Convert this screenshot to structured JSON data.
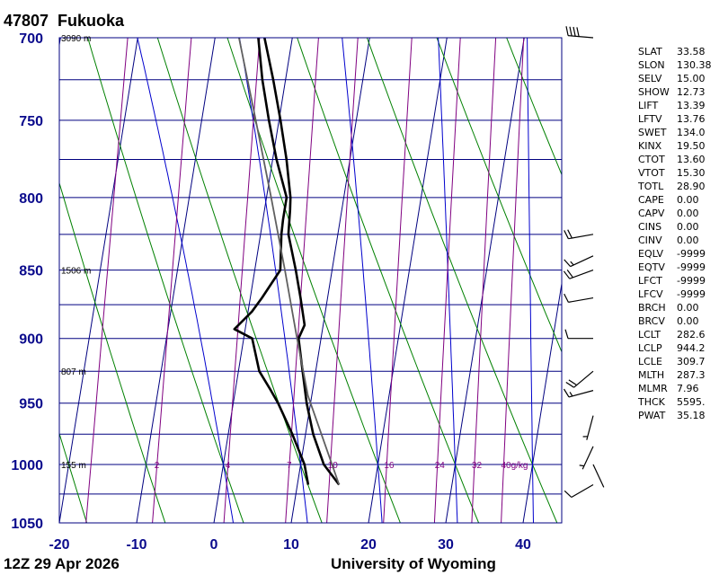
{
  "header": {
    "station_id": "47807",
    "station_name": "Fukuoka",
    "time": "12Z 29 Apr 2026",
    "credit": "University of Wyoming"
  },
  "chart_data": {
    "type": "line",
    "title": "47807  Fukuoka",
    "xlim": [
      -20,
      45
    ],
    "ylim": [
      1050,
      700
    ],
    "y_scale": "log",
    "x_ticks": [
      -20,
      -10,
      0,
      10,
      20,
      30,
      40
    ],
    "y_ticks": [
      700,
      750,
      800,
      850,
      900,
      950,
      1000,
      1050
    ],
    "grid": true,
    "height_labels": [
      {
        "p": 700,
        "text": "3090 m"
      },
      {
        "p": 850,
        "text": "1506 m"
      },
      {
        "p": 925,
        "text": "807 m"
      },
      {
        "p": 1000,
        "text": "155 m"
      }
    ],
    "mixing_ratio_labels": [
      "2",
      "4",
      "7",
      "10",
      "16",
      "24",
      "32",
      "40g/kg"
    ],
    "mixing_ratios": [
      1,
      2,
      4,
      7,
      10,
      16,
      24,
      32,
      40
    ],
    "dry_adiabats_theta": [
      -30,
      -20,
      -10,
      0,
      10,
      20,
      30,
      40,
      50,
      60,
      70
    ],
    "moist_adiabats_theta": [
      0,
      10,
      20,
      30,
      40
    ],
    "isotherms_skew": [
      -90,
      -80,
      -70,
      -60,
      -50,
      -40,
      -30,
      -20,
      -10,
      0,
      10,
      20,
      30,
      40
    ],
    "series": [
      {
        "key": "temperature",
        "values": [
          {
            "p": 1017,
            "t": 15.4
          },
          {
            "p": 1000,
            "t": 13.0
          },
          {
            "p": 975,
            "t": 11.0
          },
          {
            "p": 950,
            "t": 9.5
          },
          {
            "p": 925,
            "t": 8.3
          },
          {
            "p": 900,
            "t": 7.1
          },
          {
            "p": 890,
            "t": 7.6
          },
          {
            "p": 870,
            "t": 6.5
          },
          {
            "p": 850,
            "t": 5.3
          },
          {
            "p": 825,
            "t": 3.6
          },
          {
            "p": 808,
            "t": 3.3
          },
          {
            "p": 800,
            "t": 3.1
          },
          {
            "p": 775,
            "t": 1.8
          },
          {
            "p": 750,
            "t": 0.2
          },
          {
            "p": 725,
            "t": -1.6
          },
          {
            "p": 700,
            "t": -3.6
          }
        ]
      },
      {
        "key": "dewpoint",
        "values": [
          {
            "p": 1017,
            "t": 11.4
          },
          {
            "p": 1000,
            "t": 10.5
          },
          {
            "p": 975,
            "t": 8.3
          },
          {
            "p": 950,
            "t": 5.8
          },
          {
            "p": 940,
            "t": 4.6
          },
          {
            "p": 925,
            "t": 2.7
          },
          {
            "p": 900,
            "t": 1.1
          },
          {
            "p": 893,
            "t": -1.4
          },
          {
            "p": 880,
            "t": 0.5
          },
          {
            "p": 870,
            "t": 1.5
          },
          {
            "p": 850,
            "t": 3.3
          },
          {
            "p": 825,
            "t": 2.7
          },
          {
            "p": 815,
            "t": 2.6
          },
          {
            "p": 800,
            "t": 2.6
          },
          {
            "p": 775,
            "t": 0.5
          },
          {
            "p": 750,
            "t": -1.3
          },
          {
            "p": 725,
            "t": -3.0
          },
          {
            "p": 700,
            "t": -4.4
          }
        ]
      },
      {
        "key": "parcel",
        "values": [
          {
            "p": 1017,
            "t": 15.4
          },
          {
            "p": 944,
            "t": 9.5
          },
          {
            "p": 900,
            "t": 6.9
          },
          {
            "p": 850,
            "t": 3.9
          },
          {
            "p": 800,
            "t": 0.6
          },
          {
            "p": 750,
            "t": -3.0
          },
          {
            "p": 700,
            "t": -6.9
          }
        ]
      }
    ],
    "wind_barbs": [
      {
        "p": 700,
        "dir": 275,
        "spd": 40
      },
      {
        "p": 825,
        "dir": 260,
        "spd": 20
      },
      {
        "p": 840,
        "dir": 245,
        "spd": 15
      },
      {
        "p": 850,
        "dir": 250,
        "spd": 20
      },
      {
        "p": 870,
        "dir": 260,
        "spd": 10
      },
      {
        "p": 900,
        "dir": 270,
        "spd": 10
      },
      {
        "p": 925,
        "dir": 230,
        "spd": 20
      },
      {
        "p": 940,
        "dir": 255,
        "spd": 15
      },
      {
        "p": 960,
        "dir": 195,
        "spd": 5
      },
      {
        "p": 985,
        "dir": 205,
        "spd": 5
      },
      {
        "p": 1000,
        "dir": 155,
        "spd": 0
      },
      {
        "p": 1017,
        "dir": 240,
        "spd": 10
      }
    ]
  },
  "indices": [
    {
      "name": "SLAT",
      "value": "33.58"
    },
    {
      "name": "SLON",
      "value": "130.38"
    },
    {
      "name": "SELV",
      "value": "15.00"
    },
    {
      "name": "SHOW",
      "value": "12.73"
    },
    {
      "name": "LIFT",
      "value": "13.39"
    },
    {
      "name": "LFTV",
      "value": "13.76"
    },
    {
      "name": "SWET",
      "value": "134.0"
    },
    {
      "name": "KINX",
      "value": "19.50"
    },
    {
      "name": "CTOT",
      "value": "13.60"
    },
    {
      "name": "VTOT",
      "value": "15.30"
    },
    {
      "name": "TOTL",
      "value": "28.90"
    },
    {
      "name": "CAPE",
      "value": "0.00"
    },
    {
      "name": "CAPV",
      "value": "0.00"
    },
    {
      "name": "CINS",
      "value": "0.00"
    },
    {
      "name": "CINV",
      "value": "0.00"
    },
    {
      "name": "EQLV",
      "value": "-9999"
    },
    {
      "name": "EQTV",
      "value": "-9999"
    },
    {
      "name": "LFCT",
      "value": "-9999"
    },
    {
      "name": "LFCV",
      "value": "-9999"
    },
    {
      "name": "BRCH",
      "value": "0.00"
    },
    {
      "name": "BRCV",
      "value": "0.00"
    },
    {
      "name": "LCLT",
      "value": "282.6"
    },
    {
      "name": "LCLP",
      "value": "944.2"
    },
    {
      "name": "LCLE",
      "value": "309.7"
    },
    {
      "name": "MLTH",
      "value": "287.3"
    },
    {
      "name": "MLMR",
      "value": "7.96"
    },
    {
      "name": "THCK",
      "value": "5595."
    },
    {
      "name": "PWAT",
      "value": "35.18"
    }
  ],
  "colors": {
    "frame": "#000080",
    "axis_text": "#0a0a8c",
    "dry_adiabat": "#008000",
    "moist_adiabat": "#0000cd",
    "mixing_ratio": "#800080",
    "sounding": "#000000",
    "parcel": "#606060"
  }
}
